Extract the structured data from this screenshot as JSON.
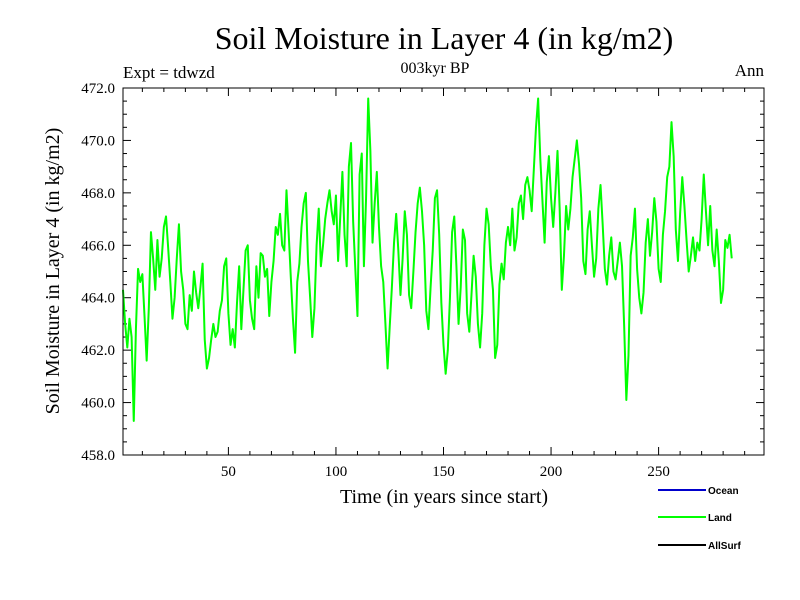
{
  "chart_data": {
    "type": "line",
    "title": "Soil Moisture in Layer 4 (in kg/m2)",
    "subtitle": "003kyr BP",
    "left_label": "Expt = tdwzd",
    "right_label": "Ann",
    "xlabel": "Time (in years since start)",
    "ylabel": "Soil Moisture in Layer 4 (in kg/m2)",
    "xlim": [
      1,
      299
    ],
    "ylim": [
      458.0,
      472.0
    ],
    "xticks": [
      50,
      100,
      150,
      200,
      250
    ],
    "xtick_labels": [
      "50",
      "100",
      "150",
      "200",
      "250"
    ],
    "yticks": [
      458.0,
      460.0,
      462.0,
      464.0,
      466.0,
      468.0,
      470.0,
      472.0
    ],
    "ytick_labels": [
      "458.0",
      "460.0",
      "462.0",
      "464.0",
      "466.0",
      "468.0",
      "470.0",
      "472.0"
    ],
    "legend_placement": "bottom-right, below plot",
    "legend": [
      {
        "name": "Ocean",
        "color": "#0000cc"
      },
      {
        "name": "Land",
        "color": "#00ff00"
      },
      {
        "name": "AllSurf",
        "color": "#000000"
      }
    ],
    "series": [
      {
        "name": "Land",
        "color": "#00ff00",
        "x_start": 1,
        "x_step": 1,
        "values": [
          464.3,
          463.0,
          462.1,
          463.2,
          462.5,
          459.3,
          462.8,
          465.1,
          464.6,
          464.9,
          463.3,
          461.6,
          463.6,
          466.5,
          465.5,
          464.3,
          466.2,
          464.8,
          465.5,
          466.7,
          467.1,
          465.9,
          464.6,
          463.2,
          464.0,
          465.5,
          466.8,
          465.0,
          464.3,
          463.0,
          462.8,
          464.1,
          463.5,
          465.0,
          464.2,
          463.6,
          464.4,
          465.3,
          462.4,
          461.3,
          461.7,
          462.4,
          463.0,
          462.5,
          462.7,
          463.5,
          463.9,
          465.2,
          465.5,
          463.4,
          462.2,
          462.8,
          462.1,
          463.8,
          465.2,
          462.8,
          464.3,
          465.8,
          466.0,
          463.9,
          463.2,
          462.8,
          465.2,
          464.0,
          465.7,
          465.6,
          464.8,
          465.1,
          463.3,
          464.6,
          465.4,
          466.7,
          466.4,
          467.2,
          466.0,
          465.8,
          468.1,
          466.5,
          464.8,
          463.2,
          461.9,
          464.6,
          465.3,
          466.7,
          467.6,
          468.0,
          465.4,
          464.0,
          462.5,
          463.6,
          466.0,
          467.4,
          465.2,
          466.0,
          467.0,
          467.6,
          468.1,
          467.3,
          466.8,
          467.9,
          465.4,
          467.1,
          468.8,
          466.4,
          465.2,
          469.0,
          469.9,
          466.9,
          465.1,
          463.3,
          468.7,
          469.5,
          465.2,
          467.8,
          471.6,
          469.6,
          466.1,
          467.6,
          468.8,
          466.7,
          465.2,
          464.6,
          463.0,
          461.3,
          462.9,
          464.4,
          466.1,
          467.2,
          465.8,
          464.1,
          465.5,
          467.3,
          466.4,
          464.1,
          463.6,
          465.0,
          466.5,
          467.6,
          468.2,
          467.3,
          466.0,
          463.5,
          462.8,
          464.4,
          465.8,
          467.8,
          468.1,
          466.4,
          463.8,
          462.2,
          461.1,
          462.0,
          464.0,
          466.5,
          467.1,
          465.2,
          463.0,
          464.4,
          466.6,
          466.2,
          463.4,
          462.7,
          464.1,
          465.6,
          464.8,
          463.0,
          462.1,
          463.4,
          466.0,
          467.4,
          466.8,
          465.2,
          464.3,
          461.7,
          462.2,
          464.5,
          465.3,
          464.7,
          466.1,
          466.7,
          466.0,
          467.4,
          465.8,
          466.3,
          467.6,
          467.9,
          467.0,
          468.3,
          468.6,
          468.1,
          467.3,
          468.9,
          470.5,
          471.6,
          469.3,
          467.7,
          466.1,
          468.4,
          469.4,
          467.8,
          466.7,
          468.0,
          469.6,
          467.4,
          464.3,
          465.6,
          467.5,
          466.6,
          467.4,
          468.6,
          469.3,
          470.0,
          469.1,
          467.8,
          465.4,
          464.9,
          466.6,
          467.3,
          466.0,
          464.8,
          465.5,
          467.4,
          468.3,
          466.8,
          465.1,
          464.5,
          465.6,
          466.3,
          465.0,
          464.7,
          465.4,
          466.1,
          465.2,
          462.9,
          460.1,
          461.8,
          465.6,
          466.3,
          467.4,
          465.1,
          464.0,
          463.4,
          464.2,
          466.1,
          467.0,
          465.6,
          466.5,
          467.8,
          466.9,
          465.1,
          464.6,
          466.4,
          467.3,
          468.6,
          469.0,
          470.7,
          469.4,
          466.6,
          465.4,
          467.2,
          468.6,
          467.5,
          466.2,
          465.0,
          465.6,
          466.3,
          465.4,
          466.1,
          465.8,
          467.0,
          468.7,
          467.3,
          466.0,
          467.5,
          465.8,
          465.2,
          466.6,
          465.4,
          463.8,
          464.3,
          466.2,
          465.9,
          466.4,
          465.5
        ]
      }
    ]
  }
}
